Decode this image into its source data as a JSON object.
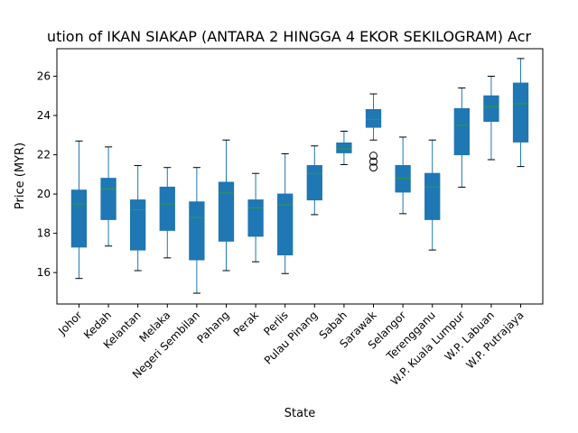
{
  "chart_data": {
    "type": "box",
    "title": "ution of IKAN SIAKAP (ANTARA 2 HINGGA 4 EKOR SEKILOGRAM) Acr",
    "xlabel": "State",
    "ylabel": "Price (MYR)",
    "ylim": [
      14.4,
      27.4
    ],
    "yticks": [
      16,
      18,
      20,
      22,
      24,
      26
    ],
    "grid": false,
    "colors": {
      "box_fill": "#1f77b4",
      "whisker": "#1f77b4",
      "median": "#2ca02c",
      "outlier": "#000000"
    },
    "categories": [
      "Johor",
      "Kedah",
      "Kelantan",
      "Melaka",
      "Negeri Sembilan",
      "Pahang",
      "Perak",
      "Perlis",
      "Pulau Pinang",
      "Sabah",
      "Sarawak",
      "Selangor",
      "Terengganu",
      "W.P. Kuala Lumpur",
      "W.P. Labuan",
      "W.P. Putrajaya"
    ],
    "boxes": [
      {
        "whislo": 15.7,
        "q1": 17.3,
        "med": 19.5,
        "q3": 20.2,
        "whishi": 22.7,
        "fliers": []
      },
      {
        "whislo": 17.35,
        "q1": 18.7,
        "med": 20.25,
        "q3": 20.8,
        "whishi": 22.4,
        "fliers": []
      },
      {
        "whislo": 16.1,
        "q1": 17.15,
        "med": 19.2,
        "q3": 19.7,
        "whishi": 21.45,
        "fliers": []
      },
      {
        "whislo": 16.75,
        "q1": 18.15,
        "med": 19.5,
        "q3": 20.35,
        "whishi": 21.35,
        "fliers": []
      },
      {
        "whislo": 14.95,
        "q1": 16.65,
        "med": 18.8,
        "q3": 19.6,
        "whishi": 21.35,
        "fliers": []
      },
      {
        "whislo": 16.1,
        "q1": 17.6,
        "med": 20.05,
        "q3": 20.6,
        "whishi": 22.75,
        "fliers": []
      },
      {
        "whislo": 16.55,
        "q1": 17.85,
        "med": 19.3,
        "q3": 19.7,
        "whishi": 21.05,
        "fliers": []
      },
      {
        "whislo": 15.95,
        "q1": 16.9,
        "med": 19.45,
        "q3": 20.0,
        "whishi": 22.05,
        "fliers": []
      },
      {
        "whislo": 18.95,
        "q1": 19.7,
        "med": 21.05,
        "q3": 21.45,
        "whishi": 22.45,
        "fliers": []
      },
      {
        "whislo": 21.5,
        "q1": 22.1,
        "med": 22.3,
        "q3": 22.6,
        "whishi": 23.2,
        "fliers": []
      },
      {
        "whislo": 22.75,
        "q1": 23.4,
        "med": 23.8,
        "q3": 24.3,
        "whishi": 25.1,
        "fliers": [
          21.35,
          21.65,
          21.95
        ]
      },
      {
        "whislo": 19.0,
        "q1": 20.1,
        "med": 20.8,
        "q3": 21.45,
        "whishi": 22.9,
        "fliers": []
      },
      {
        "whislo": 17.15,
        "q1": 18.7,
        "med": 20.35,
        "q3": 21.05,
        "whishi": 22.75,
        "fliers": []
      },
      {
        "whislo": 20.35,
        "q1": 22.0,
        "med": 23.5,
        "q3": 24.35,
        "whishi": 25.4,
        "fliers": []
      },
      {
        "whislo": 21.75,
        "q1": 23.7,
        "med": 24.45,
        "q3": 25.0,
        "whishi": 26.0,
        "fliers": []
      },
      {
        "whislo": 21.4,
        "q1": 22.65,
        "med": 24.6,
        "q3": 25.65,
        "whishi": 26.9,
        "fliers": []
      }
    ]
  }
}
